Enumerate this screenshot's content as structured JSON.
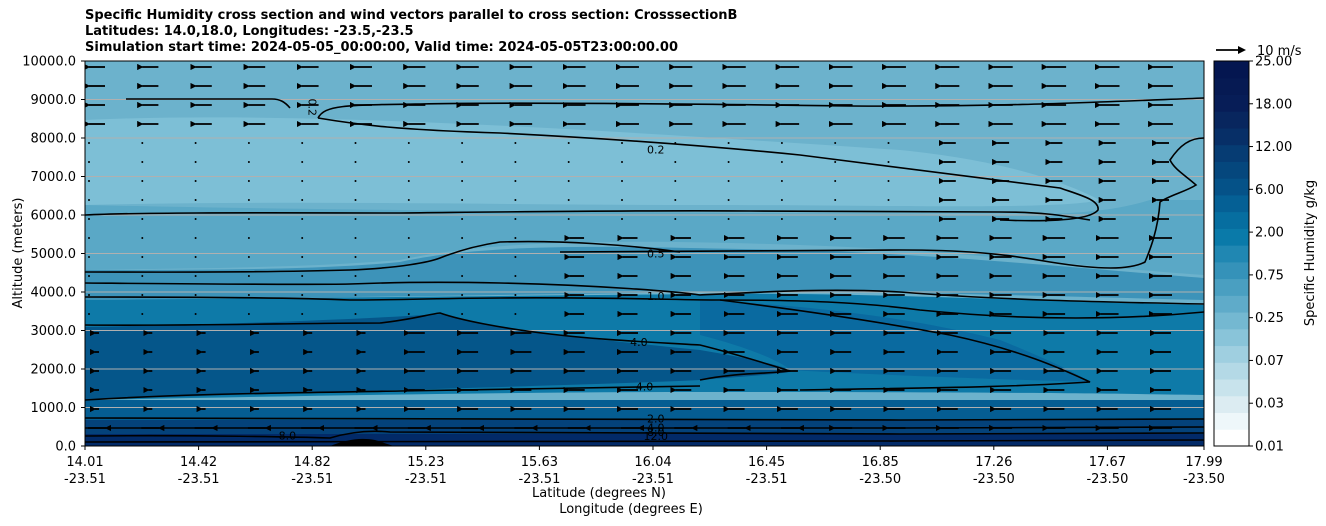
{
  "chart_data": {
    "type": "contour",
    "title": [
      "Specific Humidity cross section and wind vectors parallel to cross section: CrosssectionB",
      "Latitudes: 14.0,18.0, Longitudes: -23.5,-23.5",
      "Simulation start time: 2024-05-05_00:00:00, Valid time: 2024-05-05T23:00:00.00"
    ],
    "xlabel": "Latitude (degrees N)",
    "xlabel2": "Longitude (degrees E)",
    "ylabel": "Altitude (meters)",
    "ylim": [
      0,
      10000
    ],
    "xlim": [
      14.01,
      17.99
    ],
    "x_ticks": [
      {
        "lat": "14.01",
        "lon": "-23.51"
      },
      {
        "lat": "14.42",
        "lon": "-23.51"
      },
      {
        "lat": "14.82",
        "lon": "-23.51"
      },
      {
        "lat": "15.23",
        "lon": "-23.51"
      },
      {
        "lat": "15.63",
        "lon": "-23.51"
      },
      {
        "lat": "16.04",
        "lon": "-23.51"
      },
      {
        "lat": "16.45",
        "lon": "-23.51"
      },
      {
        "lat": "16.85",
        "lon": "-23.50"
      },
      {
        "lat": "17.26",
        "lon": "-23.50"
      },
      {
        "lat": "17.67",
        "lon": "-23.50"
      },
      {
        "lat": "17.99",
        "lon": "-23.50"
      }
    ],
    "y_ticks": [
      "0.0",
      "1000.0",
      "2000.0",
      "3000.0",
      "4000.0",
      "5000.0",
      "6000.0",
      "7000.0",
      "8000.0",
      "9000.0",
      "10000.0"
    ],
    "colorbar": {
      "label": "Specific Humidity g/kg",
      "levels": [
        "0.01",
        "0.03",
        "0.07",
        "0.25",
        "0.75",
        "2.00",
        "6.00",
        "12.00",
        "18.00",
        "25.00"
      ]
    },
    "quiver_key": "10 m/s",
    "contour_labels": [
      {
        "text": "0.2",
        "lat": 16.04,
        "alt": 7700
      },
      {
        "text": "0.2",
        "lat": 14.82,
        "alt": 8800
      },
      {
        "text": "0.5",
        "lat": 16.04,
        "alt": 5000
      },
      {
        "text": "1.0",
        "lat": 16.04,
        "alt": 3900
      },
      {
        "text": "4.0",
        "lat": 15.98,
        "alt": 2700
      },
      {
        "text": "4.0",
        "lat": 16.0,
        "alt": 1550
      },
      {
        "text": "2.0",
        "lat": 16.04,
        "alt": 720
      },
      {
        "text": "4.0",
        "lat": 16.04,
        "alt": 480
      },
      {
        "text": "8.0",
        "lat": 16.04,
        "alt": 360
      },
      {
        "text": "12.0",
        "lat": 16.04,
        "alt": 260
      },
      {
        "text": "8.0",
        "lat": 14.73,
        "alt": 270
      }
    ]
  }
}
